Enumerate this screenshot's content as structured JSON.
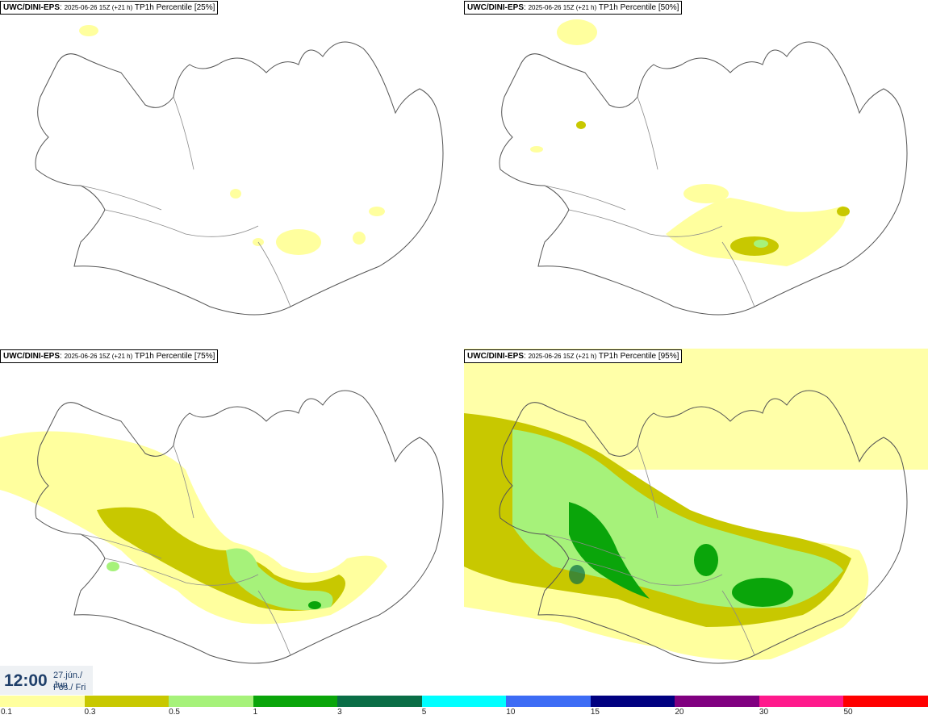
{
  "panels": [
    {
      "model": "UWC/DINI-EPS",
      "run": "2025-06-26 15Z (+21 h)",
      "percentile": "TP1h Percentile [25%]"
    },
    {
      "model": "UWC/DINI-EPS",
      "run": "2025-06-26 15Z (+21 h)",
      "percentile": "TP1h Percentile [50%]"
    },
    {
      "model": "UWC/DINI-EPS",
      "run": "2025-06-26 15Z (+21 h)",
      "percentile": "TP1h Percentile [75%]"
    },
    {
      "model": "UWC/DINI-EPS",
      "run": "2025-06-26 15Z (+21 h)",
      "percentile": "TP1h Percentile [95%]"
    }
  ],
  "valid_time": {
    "time": "12:00",
    "date_line1": "27.jún./ Jun",
    "date_line2": "Fös./ Fri"
  },
  "legend": {
    "colors": [
      "#ffff9e",
      "#c8c800",
      "#a6f27a",
      "#0aa50a",
      "#0a6e46",
      "#00ffff",
      "#3d6cf5",
      "#000080",
      "#800080",
      "#ff1a8c",
      "#ff0000"
    ],
    "labels": [
      "0.1",
      "0.3",
      "0.5",
      "1",
      "3",
      "5",
      "10",
      "15",
      "20",
      "30",
      "50"
    ]
  },
  "map_colors": {
    "land_line": "#555555",
    "road": "#8a8a8a",
    "light": "#ffff9e",
    "medium": "#c8c800",
    "green": "#a6f27a",
    "dark": "#0aa50a"
  }
}
